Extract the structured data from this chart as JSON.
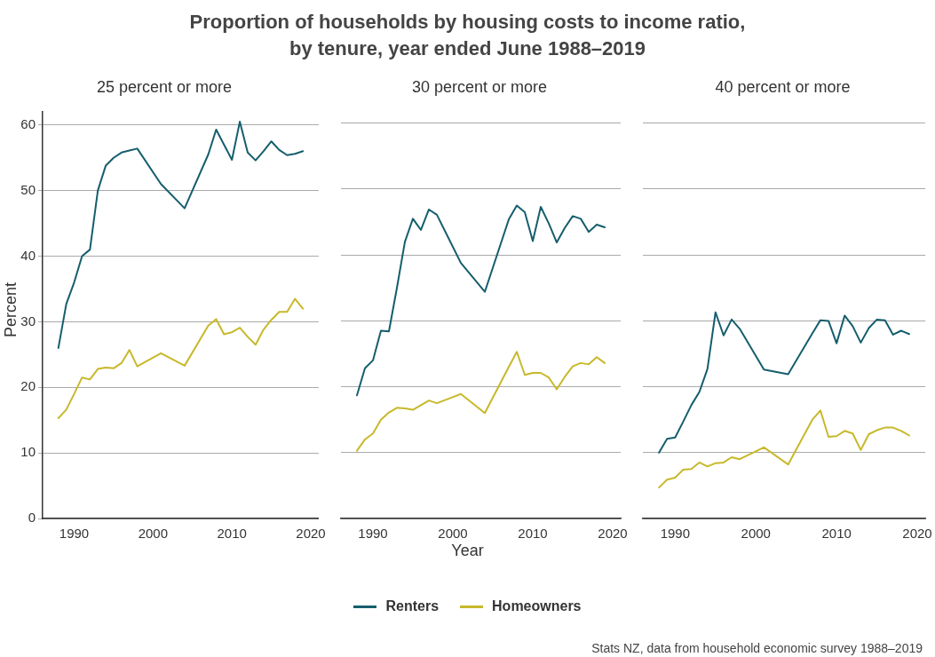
{
  "chart_data": [
    {
      "type": "line",
      "title": "Proportion of households by housing costs to income ratio, by tenure, year ended June 1988–2019",
      "subtitle": "25 percent or more",
      "ylabel": "Percent",
      "legend": "bottom",
      "grid": "y",
      "marker": "none",
      "line_style": "solid",
      "xlim": [
        1986,
        2021
      ],
      "xticks": [
        1990,
        2000,
        2010,
        2020
      ],
      "ylim": [
        0,
        62
      ],
      "yticks": [
        0,
        10,
        20,
        30,
        40,
        50,
        60
      ],
      "x": [
        1988,
        1989,
        1990,
        1991,
        1992,
        1993,
        1994,
        1995,
        1996,
        1997,
        1998,
        2001,
        2004,
        2007,
        2008,
        2009,
        2010,
        2011,
        2012,
        2013,
        2014,
        2015,
        2016,
        2017,
        2018,
        2019
      ],
      "series": [
        {
          "name": "Renters",
          "color": "#155e6d",
          "values": [
            26,
            32.7,
            36,
            40,
            41,
            50,
            53.8,
            55,
            55.8,
            56.1,
            56.4,
            51,
            47.3,
            55.5,
            59.3,
            57,
            54.7,
            60.5,
            55.8,
            54.6,
            56,
            57.5,
            56.2,
            55.4,
            55.6,
            56
          ]
        },
        {
          "name": "Homeowners",
          "color": "#c8b82a",
          "values": [
            15.3,
            16.6,
            19,
            21.5,
            21.2,
            22.8,
            23,
            22.9,
            23.7,
            25.7,
            23.2,
            25.2,
            23.3,
            29.4,
            30.4,
            28.1,
            28.4,
            29.1,
            27.7,
            26.5,
            28.8,
            30.3,
            31.5,
            31.5,
            33.5,
            32
          ]
        }
      ],
      "annotations": [
        "Stats NZ, data from household economic survey 1988–2019"
      ]
    },
    {
      "type": "line",
      "subtitle": "30 percent or more",
      "xlabel": "Year",
      "grid": "y",
      "marker": "none",
      "line_style": "solid",
      "tick_labels": "x",
      "xlim": [
        1986,
        2021
      ],
      "xticks": [
        1990,
        2000,
        2010,
        2020
      ],
      "ylim": [
        0,
        60
      ],
      "yticks": [
        0,
        10,
        20,
        30,
        40,
        50,
        60
      ],
      "x": [
        1988,
        1989,
        1990,
        1991,
        1992,
        1993,
        1994,
        1995,
        1996,
        1997,
        1998,
        2001,
        2004,
        2007,
        2008,
        2009,
        2010,
        2011,
        2012,
        2013,
        2014,
        2015,
        2016,
        2017,
        2018,
        2019
      ],
      "series": [
        {
          "color": "#155e6d",
          "values": [
            18.7,
            22.8,
            24,
            28.5,
            28.4,
            35,
            42,
            45.5,
            43.8,
            46.9,
            46.1,
            38.8,
            34.4,
            45.4,
            47.5,
            46.5,
            42.1,
            47.3,
            44.8,
            41.9,
            44.1,
            45.9,
            45.5,
            43.5,
            44.6,
            44.2
          ]
        },
        {
          "color": "#c8b82a",
          "values": [
            10.3,
            12,
            12.9,
            15,
            16.1,
            16.8,
            16.7,
            16.5,
            17.2,
            17.9,
            17.5,
            18.9,
            16,
            23,
            25.3,
            21.8,
            22.1,
            22.1,
            21.4,
            19.6,
            21.5,
            23.1,
            23.6,
            23.4,
            24.5,
            23.6
          ]
        }
      ]
    },
    {
      "type": "line",
      "subtitle": "40 percent or more",
      "grid": "y",
      "marker": "none",
      "line_style": "solid",
      "tick_labels": "x",
      "xlim": [
        1986,
        2021
      ],
      "xticks": [
        1990,
        2000,
        2010,
        2020
      ],
      "ylim": [
        0,
        60
      ],
      "yticks": [
        0,
        10,
        20,
        30,
        40,
        50,
        60
      ],
      "x": [
        1988,
        1989,
        1990,
        1991,
        1992,
        1993,
        1994,
        1995,
        1996,
        1997,
        1998,
        2001,
        2004,
        2007,
        2008,
        2009,
        2010,
        2011,
        2012,
        2013,
        2014,
        2015,
        2016,
        2017,
        2018,
        2019
      ],
      "series": [
        {
          "color": "#155e6d",
          "values": [
            10,
            12.1,
            12.3,
            14.7,
            17.2,
            19.2,
            22.7,
            31.3,
            27.8,
            30.2,
            28.8,
            22.6,
            21.9,
            28.1,
            30.1,
            30,
            26.6,
            30.8,
            29.2,
            26.7,
            28.9,
            30.2,
            30.1,
            27.9,
            28.5,
            28
          ]
        },
        {
          "color": "#c8b82a",
          "values": [
            4.7,
            5.9,
            6.2,
            7.4,
            7.5,
            8.5,
            7.9,
            8.4,
            8.5,
            9.3,
            9,
            10.8,
            8.2,
            15,
            16.4,
            12.4,
            12.5,
            13.3,
            12.9,
            10.4,
            12.8,
            13.4,
            13.8,
            13.8,
            13.3,
            12.6
          ]
        }
      ]
    }
  ]
}
